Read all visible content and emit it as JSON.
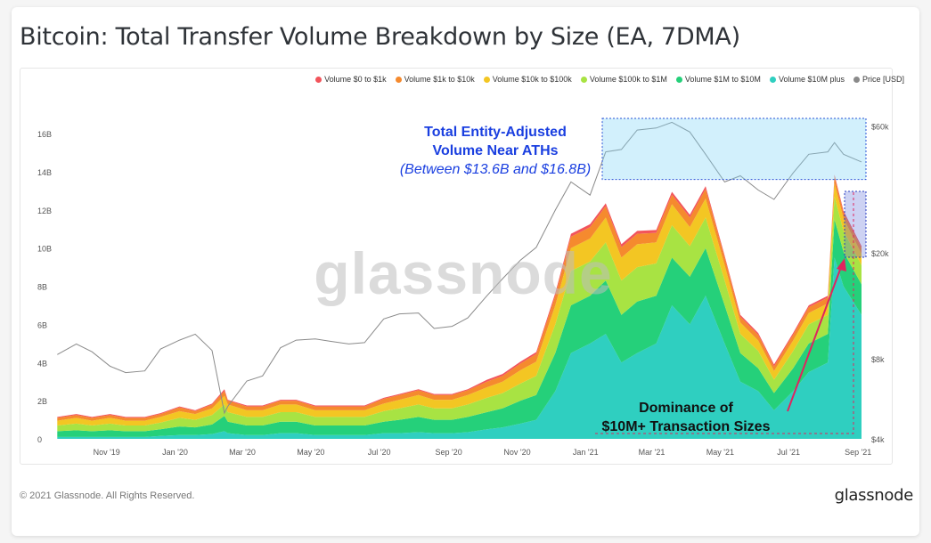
{
  "title": "Bitcoin: Total Transfer Volume Breakdown by Size (EA, 7DMA)",
  "watermark": "glassnode",
  "footer": {
    "copyright": "© 2021 Glassnode. All Rights Reserved.",
    "brand": "glassnode"
  },
  "legend": [
    {
      "label": "Volume $0 to $1k",
      "color": "#f2545b"
    },
    {
      "label": "Volume $1k to $10k",
      "color": "#f58a2e"
    },
    {
      "label": "Volume $10k to $100k",
      "color": "#f3c623"
    },
    {
      "label": "Volume $100k to $1M",
      "color": "#a8e343"
    },
    {
      "label": "Volume $1M to $10M",
      "color": "#25d07a"
    },
    {
      "label": "Volume $10M plus",
      "color": "#2fcfc0"
    },
    {
      "label": "Price [USD]",
      "color": "#8a8a8a"
    }
  ],
  "annotations": {
    "ath_title_line1": "Total Entity-Adjusted",
    "ath_title_line2": "Volume Near ATHs",
    "ath_subtitle": "(Between $13.6B and $16.8B)",
    "dominance_line1": "Dominance of",
    "dominance_line2": "$10M+ Transaction Sizes",
    "ath_color": "#1a3fe0",
    "arrow_color": "#e0245e"
  },
  "chart_data": {
    "type": "area",
    "stacked": true,
    "x": [
      "2019-10-15",
      "2019-11-01",
      "2019-11-15",
      "2019-12-01",
      "2019-12-15",
      "2020-01-01",
      "2020-01-15",
      "2020-02-01",
      "2020-02-15",
      "2020-03-01",
      "2020-03-12",
      "2020-03-15",
      "2020-04-01",
      "2020-04-15",
      "2020-05-01",
      "2020-05-15",
      "2020-06-01",
      "2020-06-15",
      "2020-07-01",
      "2020-07-15",
      "2020-08-01",
      "2020-08-15",
      "2020-09-01",
      "2020-09-15",
      "2020-10-01",
      "2020-10-15",
      "2020-11-01",
      "2020-11-15",
      "2020-12-01",
      "2020-12-15",
      "2021-01-01",
      "2021-01-15",
      "2021-02-01",
      "2021-02-15",
      "2021-03-01",
      "2021-03-15",
      "2021-04-01",
      "2021-04-15",
      "2021-05-01",
      "2021-05-15",
      "2021-06-01",
      "2021-06-15",
      "2021-07-01",
      "2021-07-15",
      "2021-08-01",
      "2021-08-15",
      "2021-09-01",
      "2021-09-07",
      "2021-09-15",
      "2021-10-01"
    ],
    "series": [
      {
        "name": "Volume $10M plus",
        "values": [
          0.1,
          0.1,
          0.1,
          0.1,
          0.1,
          0.1,
          0.15,
          0.2,
          0.2,
          0.25,
          0.4,
          0.3,
          0.2,
          0.2,
          0.3,
          0.3,
          0.2,
          0.2,
          0.2,
          0.2,
          0.3,
          0.3,
          0.35,
          0.3,
          0.3,
          0.35,
          0.5,
          0.6,
          0.8,
          1.0,
          2.5,
          4.5,
          5.0,
          5.5,
          4.0,
          4.5,
          5.0,
          7.0,
          6.0,
          7.5,
          5.0,
          3.0,
          2.5,
          1.5,
          2.5,
          3.5,
          4.0,
          9.5,
          8.0,
          6.5
        ]
      },
      {
        "name": "Volume $1M to $10M",
        "values": [
          0.3,
          0.35,
          0.3,
          0.35,
          0.3,
          0.3,
          0.35,
          0.45,
          0.4,
          0.5,
          0.8,
          0.6,
          0.5,
          0.5,
          0.6,
          0.6,
          0.5,
          0.5,
          0.5,
          0.5,
          0.6,
          0.7,
          0.8,
          0.7,
          0.7,
          0.8,
          0.9,
          1.0,
          1.2,
          1.3,
          2.0,
          2.5,
          2.5,
          2.8,
          2.5,
          2.7,
          2.5,
          2.5,
          2.5,
          2.5,
          2.0,
          1.5,
          1.2,
          0.9,
          1.2,
          1.5,
          1.5,
          2.0,
          1.8,
          1.6
        ]
      },
      {
        "name": "Volume $100k to $1M",
        "values": [
          0.3,
          0.35,
          0.3,
          0.35,
          0.3,
          0.3,
          0.35,
          0.45,
          0.4,
          0.5,
          0.6,
          0.5,
          0.45,
          0.45,
          0.5,
          0.5,
          0.45,
          0.45,
          0.45,
          0.45,
          0.55,
          0.6,
          0.65,
          0.6,
          0.6,
          0.65,
          0.75,
          0.8,
          0.9,
          1.0,
          1.5,
          1.8,
          1.8,
          2.0,
          1.8,
          1.8,
          1.7,
          1.7,
          1.6,
          1.6,
          1.3,
          1.0,
          0.9,
          0.7,
          0.9,
          1.0,
          1.0,
          1.2,
          1.1,
          1.0
        ]
      },
      {
        "name": "Volume $10k to $100k",
        "values": [
          0.25,
          0.3,
          0.25,
          0.3,
          0.25,
          0.25,
          0.3,
          0.35,
          0.3,
          0.35,
          0.45,
          0.4,
          0.35,
          0.35,
          0.4,
          0.4,
          0.35,
          0.35,
          0.35,
          0.35,
          0.4,
          0.45,
          0.5,
          0.45,
          0.45,
          0.5,
          0.55,
          0.6,
          0.7,
          0.75,
          1.0,
          1.2,
          1.2,
          1.3,
          1.2,
          1.2,
          1.1,
          1.1,
          1.0,
          1.0,
          0.8,
          0.6,
          0.55,
          0.45,
          0.55,
          0.6,
          0.6,
          0.7,
          0.65,
          0.6
        ]
      },
      {
        "name": "Volume $1k to $10k",
        "values": [
          0.15,
          0.15,
          0.15,
          0.15,
          0.15,
          0.15,
          0.15,
          0.2,
          0.15,
          0.2,
          0.25,
          0.2,
          0.2,
          0.2,
          0.2,
          0.2,
          0.2,
          0.2,
          0.2,
          0.2,
          0.25,
          0.25,
          0.25,
          0.25,
          0.25,
          0.25,
          0.3,
          0.3,
          0.35,
          0.4,
          0.5,
          0.6,
          0.6,
          0.6,
          0.55,
          0.55,
          0.5,
          0.5,
          0.5,
          0.5,
          0.4,
          0.3,
          0.3,
          0.25,
          0.3,
          0.3,
          0.3,
          0.35,
          0.3,
          0.3
        ]
      },
      {
        "name": "Volume $0 to $1k",
        "values": [
          0.05,
          0.05,
          0.05,
          0.05,
          0.05,
          0.05,
          0.05,
          0.05,
          0.05,
          0.05,
          0.1,
          0.05,
          0.05,
          0.05,
          0.05,
          0.05,
          0.05,
          0.05,
          0.05,
          0.05,
          0.05,
          0.05,
          0.05,
          0.05,
          0.05,
          0.05,
          0.1,
          0.1,
          0.1,
          0.1,
          0.15,
          0.15,
          0.15,
          0.15,
          0.15,
          0.15,
          0.15,
          0.15,
          0.15,
          0.15,
          0.1,
          0.1,
          0.1,
          0.1,
          0.1,
          0.1,
          0.1,
          0.1,
          0.1,
          0.1
        ]
      }
    ],
    "price": [
      8300,
      9100,
      8500,
      7500,
      7100,
      7200,
      8700,
      9400,
      9900,
      8600,
      5000,
      5300,
      6600,
      6900,
      8800,
      9400,
      9500,
      9300,
      9100,
      9200,
      11300,
      11800,
      11900,
      10400,
      10600,
      11400,
      13800,
      16000,
      18800,
      21000,
      29000,
      37000,
      33000,
      48000,
      49000,
      58000,
      59000,
      62000,
      57000,
      47000,
      37000,
      39000,
      34500,
      31800,
      40000,
      47000,
      48000,
      52000,
      47000,
      44000
    ],
    "y_left": {
      "ticks": [
        "0",
        "2B",
        "4B",
        "6B",
        "8B",
        "10B",
        "12B",
        "14B",
        "16B"
      ],
      "range": [
        0,
        17.5
      ]
    },
    "y_right": {
      "ticks": [
        "$4k",
        "$8k",
        "$20k",
        "$60k"
      ],
      "scale": "log"
    },
    "x_ticks": [
      "Nov '19",
      "Jan '20",
      "Mar '20",
      "May '20",
      "Jul '20",
      "Sep '20",
      "Nov '20",
      "Jan '21",
      "Mar '21",
      "May '21",
      "Jul '21",
      "Sep '21"
    ],
    "ath_band": {
      "low": 13.6,
      "high": 16.8
    },
    "grid": false,
    "legend_position": "top-right"
  }
}
